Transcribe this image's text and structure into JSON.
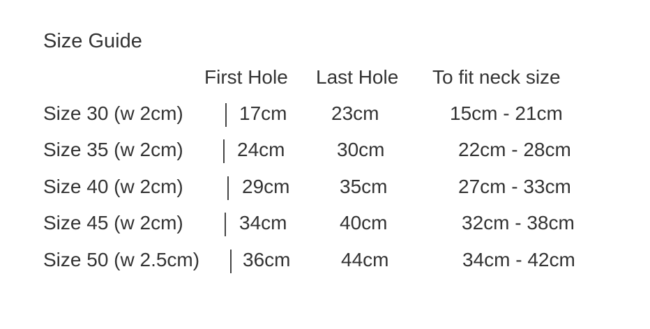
{
  "title": "Size Guide",
  "headers": [
    "First Hole",
    "Last Hole",
    "To fit neck size"
  ],
  "rows": [
    {
      "size": "Size 30 (w 2cm)",
      "first_hole": "17cm",
      "last_hole": "23cm",
      "neck": "15cm - 21cm"
    },
    {
      "size": "Size 35 (w 2cm)",
      "first_hole": "24cm",
      "last_hole": "30cm",
      "neck": "22cm - 28cm"
    },
    {
      "size": "Size 40 (w 2cm)",
      "first_hole": "29cm",
      "last_hole": "35cm",
      "neck": "27cm - 33cm"
    },
    {
      "size": "Size 45 (w 2cm)",
      "first_hole": "34cm",
      "last_hole": "40cm",
      "neck": "32cm - 38cm"
    },
    {
      "size": "Size 50 (w 2.5cm)",
      "first_hole": "36cm",
      "last_hole": "44cm",
      "neck": "34cm - 42cm"
    }
  ]
}
